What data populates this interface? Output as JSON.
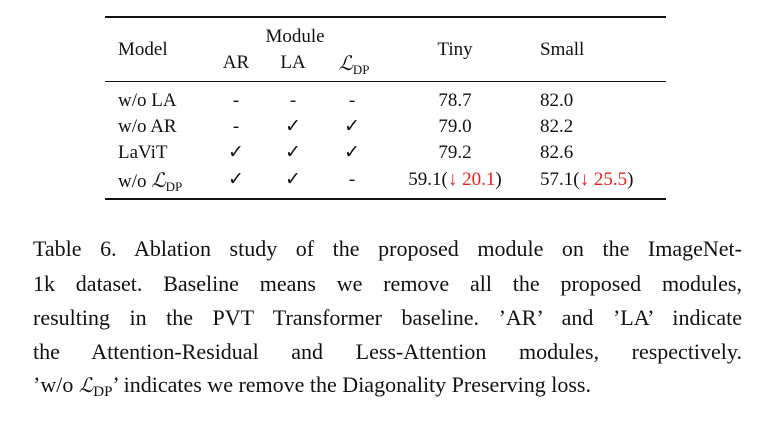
{
  "table": {
    "header": {
      "model": "Model",
      "module": "Module",
      "modules": [
        "AR",
        "LA"
      ],
      "dp_symbol": "ℒ",
      "dp_sub": "DP",
      "tiny": "Tiny",
      "small": "Small"
    },
    "rows": [
      {
        "model": "w/o LA",
        "ar": "-",
        "la": "-",
        "dp": "-",
        "tiny": "78.7",
        "small": "82.0"
      },
      {
        "model": "w/o AR",
        "ar": "-",
        "la": "✓",
        "dp": "✓",
        "tiny": "79.0",
        "small": "82.2"
      },
      {
        "model": "LaViT",
        "ar": "✓",
        "la": "✓",
        "dp": "✓",
        "tiny": "79.2",
        "small": "82.6"
      },
      {
        "model_prefix": "w/o",
        "model_symbol": "ℒ",
        "model_sub": "DP",
        "ar": "✓",
        "la": "✓",
        "dp": "-",
        "tiny": {
          "value": "59.1",
          "open": "(",
          "delta": "↓ 20.1",
          "close": ")"
        },
        "small": {
          "value": "57.1",
          "open": "(",
          "delta": "↓ 25.5",
          "close": ")"
        }
      }
    ]
  },
  "caption": {
    "lines": [
      "Table 6. Ablation study of the proposed module on the ImageNet-",
      "1k dataset. Baseline means we remove all the proposed modules,",
      "resulting in the PVT Transformer baseline. ’AR’ and ’LA’ indicate",
      "the Attention-Residual and Less-Attention modules, respectively."
    ],
    "last": {
      "before": "’w/o",
      "symbol": "ℒ",
      "sub": "DP",
      "after": "’ indicates we remove the Diagonality Preserving loss."
    }
  }
}
